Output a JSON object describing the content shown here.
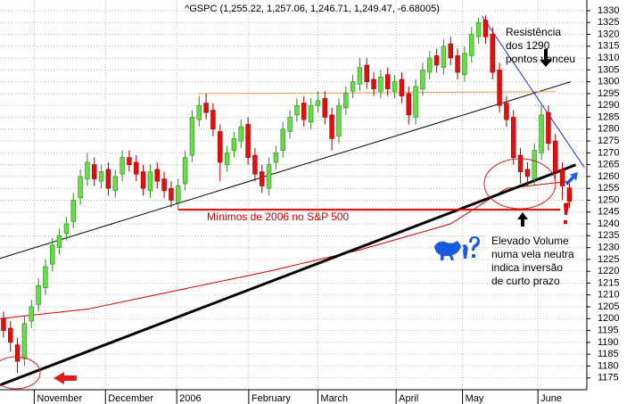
{
  "chart_data": {
    "type": "candlestick",
    "title": "^GSPC (1,255.22, 1,257.06, 1,246.71, 1,249.47, -6.68005)",
    "grid": true,
    "up_color": "#66dd44",
    "down_color": "#e01010",
    "xlim": [
      -0.5,
      83.5
    ],
    "xticks": [
      {
        "value": 4.4,
        "label": "November"
      },
      {
        "value": 14.6,
        "label": "December"
      },
      {
        "value": 24.8,
        "label": "2006"
      },
      {
        "value": 35.1,
        "label": "February"
      },
      {
        "value": 45,
        "label": "March"
      },
      {
        "value": 56.2,
        "label": "April"
      },
      {
        "value": 65.7,
        "label": "May"
      },
      {
        "value": 76.5,
        "label": "June"
      }
    ],
    "ylim": [
      1170,
      1334.5
    ],
    "yticks": [
      1175,
      1180,
      1185,
      1190,
      1195,
      1200,
      1205,
      1210,
      1215,
      1220,
      1225,
      1230,
      1235,
      1240,
      1245,
      1250,
      1255,
      1260,
      1265,
      1270,
      1275,
      1280,
      1285,
      1290,
      1295,
      1300,
      1305,
      1310,
      1315,
      1320,
      1325,
      1330
    ],
    "open": [
      1200,
      1196,
      1189,
      1183,
      1199,
      1206,
      1213,
      1223,
      1230,
      1236,
      1241,
      1251,
      1259,
      1265,
      1258,
      1263,
      1254,
      1261,
      1268,
      1266,
      1262,
      1254,
      1263,
      1259,
      1255,
      1249,
      1257,
      1269,
      1284,
      1291,
      1288,
      1279,
      1265,
      1271,
      1275,
      1282,
      1269,
      1262,
      1255,
      1266,
      1271,
      1279,
      1286,
      1291,
      1283,
      1290,
      1293,
      1286,
      1277,
      1289,
      1296,
      1299,
      1307,
      1301,
      1296,
      1303,
      1296,
      1301,
      1295,
      1285,
      1297,
      1304,
      1311,
      1306,
      1316,
      1311,
      1303,
      1311,
      1319,
      1326,
      1320,
      1305,
      1291,
      1285,
      1269,
      1263,
      1259,
      1270,
      1287,
      1275,
      1263,
      1255.22
    ],
    "high": [
      1203,
      1199,
      1192,
      1201,
      1208,
      1217,
      1225,
      1234,
      1238,
      1243,
      1253,
      1263,
      1270,
      1268,
      1265,
      1266,
      1263,
      1271,
      1271,
      1269,
      1265,
      1265,
      1266,
      1262,
      1258,
      1259,
      1271,
      1288,
      1294,
      1295,
      1291,
      1282,
      1273,
      1279,
      1284,
      1285,
      1272,
      1265,
      1268,
      1273,
      1283,
      1288,
      1293,
      1294,
      1293,
      1296,
      1296,
      1289,
      1293,
      1298,
      1303,
      1310,
      1310,
      1304,
      1305,
      1306,
      1303,
      1304,
      1298,
      1301,
      1308,
      1313,
      1314,
      1318,
      1319,
      1314,
      1315,
      1323,
      1327,
      1328,
      1323,
      1308,
      1294,
      1288,
      1272,
      1266,
      1274,
      1290,
      1290,
      1278,
      1266,
      1257.06
    ],
    "low": [
      1192,
      1186,
      1177,
      1180,
      1196,
      1203,
      1210,
      1220,
      1227,
      1233,
      1238,
      1248,
      1256,
      1256,
      1255,
      1252,
      1251,
      1258,
      1262,
      1258,
      1252,
      1251,
      1255,
      1251,
      1247,
      1246,
      1254,
      1266,
      1281,
      1284,
      1277,
      1258,
      1262,
      1268,
      1272,
      1265,
      1258,
      1253,
      1252,
      1263,
      1268,
      1276,
      1283,
      1281,
      1280,
      1287,
      1282,
      1271,
      1274,
      1286,
      1293,
      1296,
      1297,
      1294,
      1293,
      1294,
      1293,
      1291,
      1282,
      1282,
      1294,
      1301,
      1304,
      1303,
      1307,
      1301,
      1300,
      1308,
      1316,
      1316,
      1301,
      1287,
      1281,
      1265,
      1257,
      1256,
      1256,
      1267,
      1271,
      1259,
      1250,
      1246.71
    ],
    "close": [
      1195,
      1190,
      1182,
      1198,
      1205,
      1214,
      1222,
      1231,
      1235,
      1240,
      1250,
      1260,
      1266,
      1259,
      1262,
      1255,
      1260,
      1268,
      1265,
      1261,
      1255,
      1262,
      1258,
      1254,
      1250,
      1256,
      1268,
      1285,
      1290,
      1287,
      1280,
      1266,
      1270,
      1276,
      1281,
      1268,
      1261,
      1256,
      1265,
      1270,
      1280,
      1285,
      1290,
      1284,
      1290,
      1292,
      1285,
      1276,
      1290,
      1295,
      1300,
      1306,
      1300,
      1297,
      1302,
      1297,
      1300,
      1294,
      1286,
      1298,
      1305,
      1310,
      1307,
      1315,
      1310,
      1304,
      1312,
      1320,
      1325,
      1319,
      1304,
      1290,
      1284,
      1268,
      1262,
      1260,
      1271,
      1286,
      1274,
      1262,
      1256,
      1249.47
    ],
    "moving_average": {
      "color": "#cc0000",
      "x": [
        -0.5,
        12,
        25,
        38,
        51,
        64,
        72,
        81
      ],
      "values": [
        1200,
        1204,
        1212,
        1220,
        1229,
        1240,
        1255,
        1258
      ]
    },
    "lines": [
      {
        "color": "#000000",
        "width": 3,
        "x": [
          -0.5,
          81.9
        ],
        "values": [
          1172,
          1264.9
        ]
      },
      {
        "color": "#000000",
        "width": 1,
        "x": [
          -0.5,
          81.2
        ],
        "values": [
          1225.4,
          1300
        ]
      },
      {
        "color": "#e8a050",
        "width": 1,
        "x": [
          27.85,
          79.07
        ],
        "values": [
          1295,
          1295.8
        ]
      },
      {
        "color": "#2030e0",
        "width": 1,
        "x": [
          68.5,
          83.15
        ],
        "values": [
          1327.7,
          1263.8
        ]
      },
      {
        "color": "#e00000",
        "width": 2,
        "x": [
          25.05,
          79.7
        ],
        "values": [
          1246,
          1246
        ]
      }
    ],
    "annotations": [
      {
        "color": "#000000",
        "lines": [
          "Resistência",
          "dos 1290",
          "pontos venceu"
        ]
      },
      {
        "color": "#000000",
        "lines": [
          "Elevado Volume",
          "numa vela neutra",
          "indica inversão",
          "de curto prazo"
        ]
      },
      {
        "color": "#d00000",
        "lines": [
          "Mínimos de 2006 no S&P 500"
        ]
      }
    ]
  }
}
